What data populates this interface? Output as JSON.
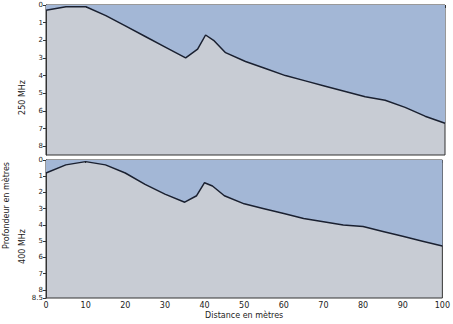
{
  "chart_data": [
    {
      "type": "line",
      "subtitle": "250 MHz",
      "ylabel": "Profondeur en mètres",
      "x": [
        0,
        5,
        10,
        15,
        20,
        25,
        30,
        35,
        38,
        40,
        42,
        45,
        50,
        55,
        60,
        65,
        70,
        75,
        80,
        85,
        90,
        95,
        100
      ],
      "values": [
        0.3,
        0.1,
        0.1,
        0.6,
        1.2,
        1.8,
        2.4,
        3.0,
        2.5,
        1.7,
        2.0,
        2.7,
        3.2,
        3.6,
        4.0,
        4.3,
        4.6,
        4.9,
        5.2,
        5.4,
        5.8,
        6.3,
        6.7
      ],
      "color": "#1a2030",
      "xlim": [
        0,
        100
      ],
      "xticks": [
        0,
        10,
        20,
        30,
        40,
        50,
        60,
        70,
        80,
        90,
        100
      ],
      "ylim": [
        0,
        8.5
      ],
      "yticks": [
        0,
        1,
        2,
        3,
        4,
        5,
        6,
        7,
        8
      ],
      "tick_labels": "y",
      "grid": false
    },
    {
      "type": "line",
      "subtitle": "400 MHz",
      "xlabel": "Distance en mètres",
      "x": [
        0,
        5,
        10,
        15,
        20,
        25,
        30,
        35,
        38,
        40,
        42,
        45,
        50,
        55,
        60,
        65,
        70,
        75,
        80,
        85,
        90,
        95,
        100
      ],
      "values": [
        0.8,
        0.3,
        0.1,
        0.3,
        0.8,
        1.5,
        2.1,
        2.6,
        2.2,
        1.4,
        1.6,
        2.2,
        2.7,
        3.0,
        3.3,
        3.6,
        3.8,
        4.0,
        4.1,
        4.4,
        4.7,
        5.0,
        5.3
      ],
      "color": "#1a2030",
      "xlim": [
        0,
        100
      ],
      "xticks": [
        0,
        10,
        20,
        30,
        40,
        50,
        60,
        70,
        80,
        90,
        100
      ],
      "ylim": [
        0,
        8.5
      ],
      "yticks": [
        0,
        1,
        2,
        3,
        4,
        5,
        6,
        7,
        8,
        8.5
      ],
      "grid": false
    }
  ]
}
